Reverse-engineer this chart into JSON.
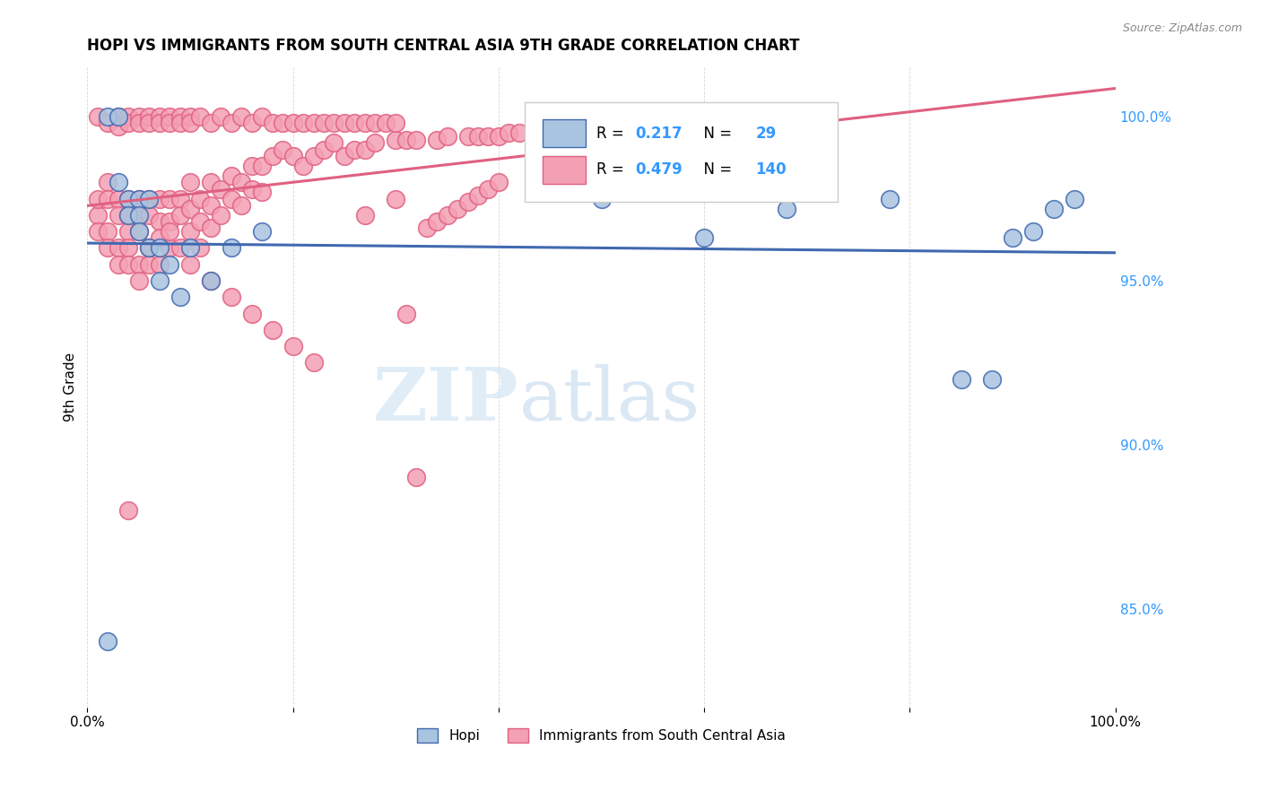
{
  "title": "HOPI VS IMMIGRANTS FROM SOUTH CENTRAL ASIA 9TH GRADE CORRELATION CHART",
  "source": "Source: ZipAtlas.com",
  "ylabel": "9th Grade",
  "xlim": [
    0.0,
    1.0
  ],
  "ylim": [
    0.82,
    1.015
  ],
  "yticks": [
    0.85,
    0.9,
    0.95,
    1.0
  ],
  "ytick_labels": [
    "85.0%",
    "90.0%",
    "95.0%",
    "100.0%"
  ],
  "xticks": [
    0.0,
    0.2,
    0.4,
    0.6,
    0.8,
    1.0
  ],
  "xtick_labels": [
    "0.0%",
    "",
    "",
    "",
    "",
    "100.0%"
  ],
  "hopi_R": 0.217,
  "hopi_N": 29,
  "immigrants_R": 0.479,
  "immigrants_N": 140,
  "hopi_color": "#a8c4e0",
  "immigrants_color": "#f4a0b4",
  "hopi_edge_color": "#4169b0",
  "immigrants_edge_color": "#e06080",
  "hopi_line_color": "#4169b0",
  "immigrants_line_color": "#e06080",
  "legend_label_hopi": "Hopi",
  "legend_label_immigrants": "Immigrants from South Central Asia",
  "watermark_zip": "ZIP",
  "watermark_atlas": "atlas",
  "hopi_x": [
    0.02,
    0.03,
    0.03,
    0.04,
    0.04,
    0.05,
    0.05,
    0.05,
    0.06,
    0.06,
    0.07,
    0.07,
    0.08,
    0.09,
    0.1,
    0.12,
    0.14,
    0.17,
    0.5,
    0.6,
    0.68,
    0.78,
    0.85,
    0.88,
    0.9,
    0.92,
    0.94,
    0.96,
    0.02
  ],
  "hopi_y": [
    1.0,
    1.0,
    0.98,
    0.975,
    0.97,
    0.975,
    0.97,
    0.965,
    0.975,
    0.96,
    0.96,
    0.95,
    0.955,
    0.945,
    0.96,
    0.95,
    0.96,
    0.965,
    0.975,
    0.963,
    0.972,
    0.975,
    0.92,
    0.92,
    0.963,
    0.965,
    0.972,
    0.975,
    0.84
  ],
  "immigrants_x": [
    0.01,
    0.01,
    0.01,
    0.02,
    0.02,
    0.02,
    0.02,
    0.03,
    0.03,
    0.03,
    0.03,
    0.04,
    0.04,
    0.04,
    0.04,
    0.04,
    0.05,
    0.05,
    0.05,
    0.05,
    0.05,
    0.06,
    0.06,
    0.06,
    0.06,
    0.07,
    0.07,
    0.07,
    0.07,
    0.08,
    0.08,
    0.08,
    0.09,
    0.09,
    0.09,
    0.1,
    0.1,
    0.1,
    0.11,
    0.11,
    0.11,
    0.12,
    0.12,
    0.12,
    0.13,
    0.13,
    0.14,
    0.14,
    0.15,
    0.15,
    0.16,
    0.16,
    0.17,
    0.17,
    0.18,
    0.19,
    0.2,
    0.21,
    0.22,
    0.23,
    0.24,
    0.25,
    0.26,
    0.27,
    0.28,
    0.3,
    0.31,
    0.32,
    0.34,
    0.35,
    0.37,
    0.38,
    0.39,
    0.4,
    0.41,
    0.42,
    0.44,
    0.45,
    0.47,
    0.48,
    0.01,
    0.02,
    0.03,
    0.03,
    0.04,
    0.04,
    0.05,
    0.05,
    0.06,
    0.06,
    0.07,
    0.07,
    0.08,
    0.08,
    0.09,
    0.09,
    0.1,
    0.1,
    0.11,
    0.12,
    0.13,
    0.14,
    0.15,
    0.16,
    0.17,
    0.18,
    0.19,
    0.2,
    0.21,
    0.22,
    0.23,
    0.24,
    0.25,
    0.26,
    0.27,
    0.28,
    0.29,
    0.3,
    0.31,
    0.32,
    0.33,
    0.34,
    0.35,
    0.36,
    0.37,
    0.38,
    0.39,
    0.4,
    0.27,
    0.3,
    0.04,
    0.06,
    0.08,
    0.1,
    0.12,
    0.14,
    0.16,
    0.18,
    0.2,
    0.22
  ],
  "immigrants_y": [
    0.97,
    0.965,
    0.975,
    0.98,
    0.975,
    0.965,
    0.96,
    0.975,
    0.97,
    0.96,
    0.955,
    0.975,
    0.97,
    0.965,
    0.96,
    0.955,
    0.975,
    0.97,
    0.965,
    0.955,
    0.95,
    0.975,
    0.97,
    0.96,
    0.955,
    0.975,
    0.968,
    0.963,
    0.955,
    0.975,
    0.968,
    0.96,
    0.975,
    0.97,
    0.96,
    0.98,
    0.972,
    0.965,
    0.975,
    0.968,
    0.96,
    0.98,
    0.973,
    0.966,
    0.978,
    0.97,
    0.982,
    0.975,
    0.98,
    0.973,
    0.985,
    0.978,
    0.985,
    0.977,
    0.988,
    0.99,
    0.988,
    0.985,
    0.988,
    0.99,
    0.992,
    0.988,
    0.99,
    0.99,
    0.992,
    0.993,
    0.993,
    0.993,
    0.993,
    0.994,
    0.994,
    0.994,
    0.994,
    0.994,
    0.995,
    0.995,
    0.995,
    0.995,
    0.995,
    0.995,
    1.0,
    0.998,
    1.0,
    0.997,
    1.0,
    0.998,
    1.0,
    0.998,
    1.0,
    0.998,
    1.0,
    0.998,
    1.0,
    0.998,
    1.0,
    0.998,
    1.0,
    0.998,
    1.0,
    0.998,
    1.0,
    0.998,
    1.0,
    0.998,
    1.0,
    0.998,
    0.998,
    0.998,
    0.998,
    0.998,
    0.998,
    0.998,
    0.998,
    0.998,
    0.998,
    0.998,
    0.998,
    0.998,
    0.94,
    0.89,
    0.966,
    0.968,
    0.97,
    0.972,
    0.974,
    0.976,
    0.978,
    0.98,
    0.97,
    0.975,
    0.88,
    0.96,
    0.965,
    0.955,
    0.95,
    0.945,
    0.94,
    0.935,
    0.93,
    0.925
  ]
}
